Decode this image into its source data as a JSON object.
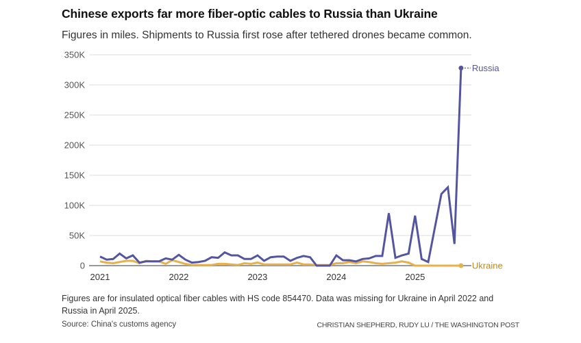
{
  "header": {
    "title": "Chinese exports far more fiber-optic cables to Russia than Ukraine",
    "subtitle": "Figures in miles. Shipments to Russia first rose after tethered drones became common."
  },
  "footer": {
    "note": "Figures are for insulated optical fiber cables with HS code 854470. Data was missing for Ukraine in April 2022 and Russia in April 2025.",
    "source": "Source: China's customs agency",
    "credit": "CHRISTIAN SHEPHERD, RUDY LU / THE WASHINGTON POST"
  },
  "chart_data": {
    "type": "line",
    "title": "Chinese exports far more fiber-optic cables to Russia than Ukraine",
    "subtitle": "Figures in miles. Shipments to Russia first rose after tethered drones became common.",
    "xlabel": "",
    "ylabel": "",
    "x_start": "2021-01",
    "x_unit": "month",
    "xlim_months": [
      0,
      55
    ],
    "ylim": [
      0,
      350000
    ],
    "yticks": [
      0,
      50000,
      100000,
      150000,
      200000,
      250000,
      300000,
      350000
    ],
    "ytick_labels": [
      "0",
      "50K",
      "100K",
      "150K",
      "200K",
      "250K",
      "300K",
      "350K"
    ],
    "xticks_months": [
      0,
      12,
      24,
      36,
      48
    ],
    "xtick_labels": [
      "2021",
      "2022",
      "2023",
      "2024",
      "2025"
    ],
    "grid": true,
    "legend": "inline-end-labels",
    "series": [
      {
        "name": "Russia",
        "color": "#5355a0",
        "values": [
          15000,
          10000,
          11000,
          20000,
          12000,
          17000,
          5000,
          7000,
          7000,
          7000,
          12000,
          10000,
          18000,
          10000,
          5000,
          6000,
          8000,
          14000,
          13000,
          22000,
          17000,
          17000,
          11000,
          11000,
          17000,
          8000,
          14000,
          15000,
          15000,
          8000,
          13000,
          16000,
          14000,
          0,
          0,
          0,
          17000,
          9000,
          9000,
          7000,
          11000,
          12000,
          16000,
          16000,
          87000,
          13000,
          17000,
          20000,
          83000,
          11000,
          6000,
          null,
          119000,
          130000,
          36000,
          328000
        ]
      },
      {
        "name": "Ukraine",
        "color": "#e8b04a",
        "label_color": "#b8892a",
        "values": [
          7000,
          5000,
          4000,
          6000,
          8000,
          8000,
          4000,
          8000,
          7000,
          7000,
          3000,
          9000,
          6000,
          3000,
          1000,
          null,
          1000,
          1000,
          3000,
          3000,
          2000,
          1000,
          4000,
          3000,
          5000,
          2000,
          2000,
          2000,
          2000,
          2000,
          5000,
          2000,
          2000,
          1000,
          1000,
          1000,
          4000,
          4000,
          6000,
          4000,
          7000,
          6000,
          4000,
          3000,
          4000,
          5000,
          7000,
          5000,
          0,
          0,
          0,
          0,
          0,
          0,
          0,
          0
        ]
      }
    ]
  }
}
